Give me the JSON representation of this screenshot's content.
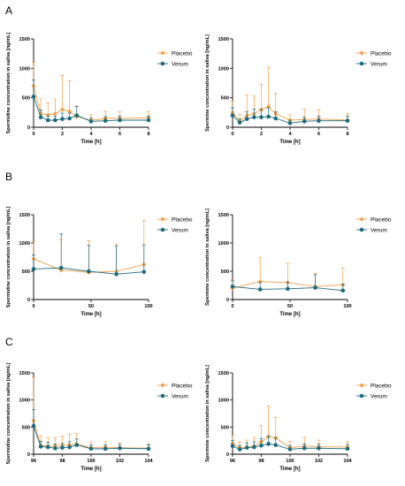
{
  "colors": {
    "placebo": "#f0a04b",
    "verum": "#1f6b7c",
    "axis": "#000000"
  },
  "panel_letters": [
    "A",
    "B",
    "C"
  ],
  "chart_data": [
    {
      "type": "line",
      "panel": "A",
      "ylabel": "Spermidine concentration in saliva [ng/mL]",
      "xlabel": "Time [h]",
      "xlim": [
        0,
        8
      ],
      "ylim": [
        0,
        1500
      ],
      "xticks": [
        0,
        2,
        4,
        6,
        8
      ],
      "yticks": [
        0,
        500,
        1000,
        1500
      ],
      "legend_position": "right",
      "series": [
        {
          "name": "Placebo",
          "x": [
            0,
            0.5,
            1,
            1.5,
            2,
            2.5,
            3,
            4,
            5,
            6,
            8
          ],
          "y": [
            700,
            230,
            210,
            230,
            300,
            270,
            180,
            120,
            150,
            150,
            160
          ],
          "err": [
            400,
            250,
            200,
            250,
            580,
            520,
            180,
            90,
            120,
            110,
            110
          ]
        },
        {
          "name": "Verum",
          "x": [
            0,
            0.5,
            1,
            1.5,
            2,
            2.5,
            3,
            4,
            5,
            6,
            8
          ],
          "y": [
            520,
            170,
            120,
            120,
            140,
            150,
            200,
            100,
            110,
            120,
            120
          ],
          "err": [
            280,
            120,
            70,
            70,
            100,
            90,
            150,
            60,
            70,
            70,
            70
          ]
        }
      ]
    },
    {
      "type": "line",
      "panel": "A",
      "ylabel": "Spermine concentration in saliva [ng/mL]",
      "xlabel": "Time [h]",
      "xlim": [
        0,
        8
      ],
      "ylim": [
        0,
        1500
      ],
      "xticks": [
        0,
        2,
        4,
        6,
        8
      ],
      "yticks": [
        0,
        500,
        1000,
        1500
      ],
      "legend_position": "right",
      "series": [
        {
          "name": "Placebo",
          "x": [
            0,
            0.5,
            1,
            1.5,
            2,
            2.5,
            3,
            4,
            5,
            6,
            8
          ],
          "y": [
            250,
            100,
            200,
            230,
            300,
            350,
            230,
            120,
            130,
            140,
            120
          ],
          "err": [
            200,
            120,
            350,
            300,
            430,
            670,
            350,
            90,
            180,
            160,
            110
          ]
        },
        {
          "name": "Verum",
          "x": [
            0,
            0.5,
            1,
            1.5,
            2,
            2.5,
            3,
            4,
            5,
            6,
            8
          ],
          "y": [
            200,
            80,
            140,
            170,
            170,
            180,
            150,
            70,
            100,
            110,
            110
          ],
          "err": [
            130,
            60,
            120,
            140,
            130,
            150,
            110,
            50,
            70,
            80,
            80
          ]
        }
      ]
    },
    {
      "type": "line",
      "panel": "B",
      "ylabel": "Spermidine concentration in saliva [ng/mL]",
      "xlabel": "Time [h]",
      "xlim": [
        0,
        100
      ],
      "ylim": [
        0,
        1500
      ],
      "xticks": [
        0,
        50,
        100
      ],
      "yticks": [
        0,
        500,
        1000,
        1500
      ],
      "legend_position": "right",
      "series": [
        {
          "name": "Placebo",
          "x": [
            0,
            24,
            48,
            72,
            96
          ],
          "y": [
            720,
            520,
            480,
            500,
            620
          ],
          "err": [
            300,
            540,
            560,
            480,
            780
          ]
        },
        {
          "name": "Verum",
          "x": [
            0,
            24,
            48,
            72,
            96
          ],
          "y": [
            540,
            560,
            500,
            450,
            490
          ],
          "err": [
            250,
            600,
            460,
            500,
            480
          ]
        }
      ]
    },
    {
      "type": "line",
      "panel": "B",
      "ylabel": "Spermine concentration in saliva [ng/mL]",
      "xlabel": "Time [h]",
      "xlim": [
        0,
        100
      ],
      "ylim": [
        0,
        1500
      ],
      "xticks": [
        0,
        50,
        100
      ],
      "yticks": [
        0,
        500,
        1000,
        1500
      ],
      "legend_position": "right",
      "series": [
        {
          "name": "Placebo",
          "x": [
            0,
            24,
            48,
            72,
            96
          ],
          "y": [
            200,
            320,
            300,
            230,
            260
          ],
          "err": [
            150,
            420,
            340,
            230,
            300
          ]
        },
        {
          "name": "Verum",
          "x": [
            0,
            24,
            48,
            72,
            96
          ],
          "y": [
            230,
            180,
            190,
            210,
            160
          ],
          "err": [
            100,
            120,
            120,
            230,
            110
          ]
        }
      ]
    },
    {
      "type": "line",
      "panel": "C",
      "ylabel": "Spermidine concentration in saliva [ng/mL]",
      "xlabel": "Time [h]",
      "xlim": [
        96,
        104
      ],
      "ylim": [
        0,
        1500
      ],
      "xticks": [
        96,
        98,
        100,
        102,
        104
      ],
      "yticks": [
        0,
        500,
        1000,
        1500
      ],
      "legend_position": "right",
      "series": [
        {
          "name": "Placebo",
          "x": [
            96,
            96.5,
            97,
            97.5,
            98,
            98.5,
            99,
            100,
            101,
            102,
            104
          ],
          "y": [
            620,
            160,
            150,
            150,
            160,
            170,
            190,
            120,
            130,
            120,
            110
          ],
          "err": [
            800,
            180,
            160,
            150,
            170,
            200,
            190,
            100,
            100,
            90,
            80
          ]
        },
        {
          "name": "Verum",
          "x": [
            96,
            96.5,
            97,
            97.5,
            98,
            98.5,
            99,
            100,
            101,
            102,
            104
          ],
          "y": [
            520,
            140,
            130,
            110,
            120,
            130,
            170,
            100,
            100,
            110,
            100
          ],
          "err": [
            300,
            100,
            90,
            80,
            80,
            100,
            110,
            70,
            70,
            70,
            70
          ]
        }
      ]
    },
    {
      "type": "line",
      "panel": "C",
      "ylabel": "Spermine concentration in saliva [ng/mL]",
      "xlabel": "Time [h]",
      "xlim": [
        96,
        104
      ],
      "ylim": [
        0,
        1500
      ],
      "xticks": [
        96,
        98,
        100,
        102,
        104
      ],
      "yticks": [
        0,
        500,
        1000,
        1500
      ],
      "legend_position": "right",
      "series": [
        {
          "name": "Placebo",
          "x": [
            96,
            96.5,
            97,
            97.5,
            98,
            98.5,
            99,
            100,
            101,
            102,
            104
          ],
          "y": [
            200,
            120,
            130,
            150,
            230,
            320,
            300,
            120,
            150,
            140,
            130
          ],
          "err": [
            150,
            100,
            130,
            160,
            300,
            570,
            380,
            120,
            160,
            120,
            100
          ]
        },
        {
          "name": "Verum",
          "x": [
            96,
            96.5,
            97,
            97.5,
            98,
            98.5,
            99,
            100,
            101,
            102,
            104
          ],
          "y": [
            150,
            90,
            120,
            130,
            160,
            190,
            170,
            90,
            110,
            110,
            100
          ],
          "err": [
            100,
            70,
            90,
            100,
            130,
            150,
            130,
            70,
            80,
            80,
            80
          ]
        }
      ]
    }
  ]
}
